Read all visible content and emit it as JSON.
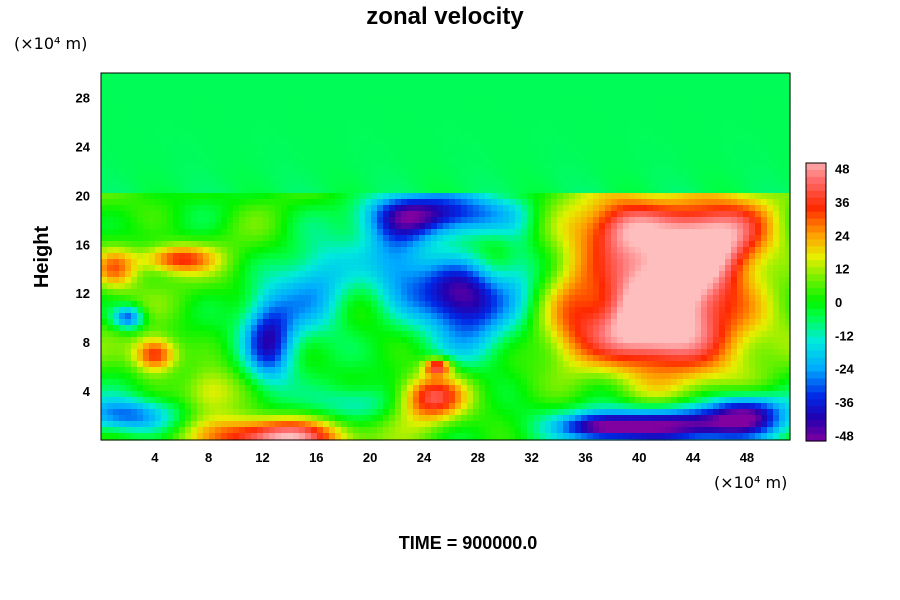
{
  "chart_data": {
    "type": "heatmap",
    "title": "zonal velocity",
    "ylabel": "Height",
    "xunit_label": "(×10⁴ m)",
    "yunit_label": "(×10⁴ m)",
    "x_ticks": [
      "4",
      "8",
      "12",
      "16",
      "20",
      "24",
      "28",
      "32",
      "36",
      "40",
      "44",
      "48"
    ],
    "y_ticks": [
      "4",
      "8",
      "12",
      "16",
      "20",
      "24",
      "28"
    ],
    "colorbar_ticks": [
      "48",
      "36",
      "24",
      "12",
      "0",
      "-12",
      "-24",
      "-36",
      "-48"
    ],
    "xlim": [
      0,
      51.2
    ],
    "ylim": [
      0,
      30
    ],
    "clim": [
      -50,
      50
    ],
    "grid": false,
    "colorbar": "right",
    "footer": "TIME = 900000.0",
    "features": [
      {
        "x": 42.5,
        "y": 12.5,
        "rx": 6.0,
        "ry": 6.5,
        "value": 60
      },
      {
        "x": 40.0,
        "y": 8.5,
        "rx": 5.0,
        "ry": 3.0,
        "value": 30
      },
      {
        "x": 38.5,
        "y": 17.5,
        "rx": 3.0,
        "ry": 2.5,
        "value": 32
      },
      {
        "x": 46.0,
        "y": 17.0,
        "rx": 4.0,
        "ry": 3.0,
        "value": 30
      },
      {
        "x": 35.0,
        "y": 12.0,
        "rx": 2.0,
        "ry": 7.0,
        "value": 14
      },
      {
        "x": 13.0,
        "y": 0.2,
        "rx": 5.0,
        "ry": 1.6,
        "value": 55
      },
      {
        "x": 24.5,
        "y": 3.5,
        "rx": 2.5,
        "ry": 2.0,
        "value": 38
      },
      {
        "x": 25.0,
        "y": 6.0,
        "rx": 1.0,
        "ry": 0.7,
        "value": 42
      },
      {
        "x": 4.0,
        "y": 7.0,
        "rx": 1.7,
        "ry": 1.5,
        "value": 40
      },
      {
        "x": 5.5,
        "y": 14.8,
        "rx": 2.8,
        "ry": 1.2,
        "value": 34
      },
      {
        "x": 1.0,
        "y": 14.0,
        "rx": 1.8,
        "ry": 1.8,
        "value": 28
      },
      {
        "x": 26.5,
        "y": 12.0,
        "rx": 3.5,
        "ry": 3.0,
        "value": -46
      },
      {
        "x": 25.0,
        "y": 18.5,
        "rx": 6.0,
        "ry": 2.0,
        "value": -40
      },
      {
        "x": 22.0,
        "y": 14.5,
        "rx": 2.5,
        "ry": 4.0,
        "value": -25
      },
      {
        "x": 28.0,
        "y": 8.0,
        "rx": 3.0,
        "ry": 3.0,
        "value": -14
      },
      {
        "x": 12.5,
        "y": 8.0,
        "rx": 2.0,
        "ry": 4.0,
        "value": -38
      },
      {
        "x": 16.0,
        "y": 12.0,
        "rx": 3.0,
        "ry": 5.0,
        "value": -20
      },
      {
        "x": 43.0,
        "y": 1.2,
        "rx": 7.0,
        "ry": 1.6,
        "value": -52
      },
      {
        "x": 37.0,
        "y": 1.0,
        "rx": 3.0,
        "ry": 1.2,
        "value": -34
      },
      {
        "x": 48.0,
        "y": 2.5,
        "rx": 3.0,
        "ry": 1.5,
        "value": -30
      },
      {
        "x": 2.0,
        "y": 2.0,
        "rx": 4.0,
        "ry": 1.5,
        "value": -28
      },
      {
        "x": 2.0,
        "y": 10.0,
        "rx": 1.2,
        "ry": 1.0,
        "value": -32
      },
      {
        "x": 19.0,
        "y": 3.0,
        "rx": 3.0,
        "ry": 1.5,
        "value": -12
      },
      {
        "x": 8.0,
        "y": 4.0,
        "rx": 2.0,
        "ry": 2.0,
        "value": 18
      },
      {
        "x": 31.0,
        "y": 14.0,
        "rx": 1.5,
        "ry": 5.0,
        "value": -8
      }
    ]
  }
}
